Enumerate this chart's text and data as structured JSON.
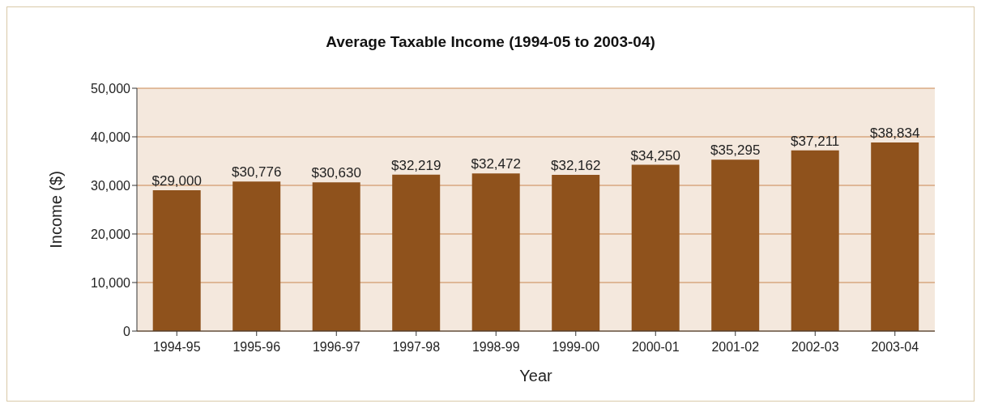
{
  "chart_data": {
    "type": "bar",
    "title": "Average Taxable Income (1994-05 to 2003-04)",
    "xlabel": "Year",
    "ylabel": "Income ($)",
    "categories": [
      "1994-95",
      "1995-96",
      "1996-97",
      "1997-98",
      "1998-99",
      "1999-00",
      "2000-01",
      "2001-02",
      "2002-03",
      "2003-04"
    ],
    "values": [
      29000,
      30776,
      30630,
      32219,
      32472,
      32162,
      34250,
      35295,
      37211,
      38834
    ],
    "value_labels": [
      "$29,000",
      "$30,776",
      "$30,630",
      "$32,219",
      "$32,472",
      "$32,162",
      "$34,250",
      "$35,295",
      "$37,211",
      "$38,834"
    ],
    "color": "#8f521c",
    "ylim": [
      0,
      50000
    ],
    "yticks": [
      {
        "value": 0,
        "label": "0"
      },
      {
        "value": 10000,
        "label": "10,000"
      },
      {
        "value": 20000,
        "label": "20,000"
      },
      {
        "value": 30000,
        "label": "30,000"
      },
      {
        "value": 40000,
        "label": "40,000"
      },
      {
        "value": 50000,
        "label": "50,000"
      }
    ],
    "grid": "y"
  }
}
